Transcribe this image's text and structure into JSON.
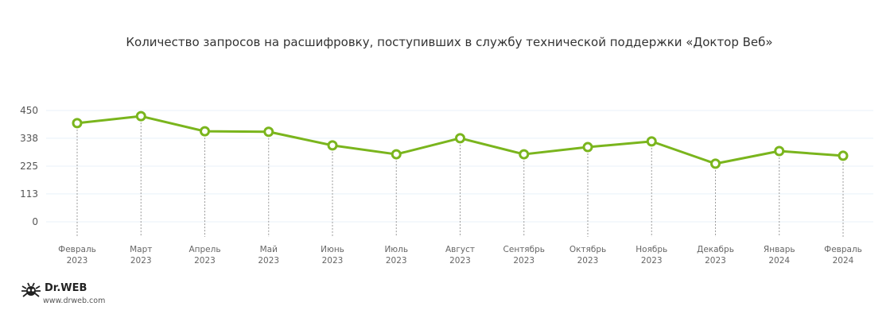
{
  "chart_data": {
    "type": "line",
    "title": "Количество запросов на расшифровку, поступивших в службу технической поддержки «Доктор Веб»",
    "categories": [
      [
        "Февраль",
        "2023"
      ],
      [
        "Март",
        "2023"
      ],
      [
        "Апрель",
        "2023"
      ],
      [
        "Май",
        "2023"
      ],
      [
        "Июнь",
        "2023"
      ],
      [
        "Июль",
        "2023"
      ],
      [
        "Август",
        "2023"
      ],
      [
        "Сентябрь",
        "2023"
      ],
      [
        "Октябрь",
        "2023"
      ],
      [
        "Ноябрь",
        "2023"
      ],
      [
        "Декабрь",
        "2023"
      ],
      [
        "Январь",
        "2024"
      ],
      [
        "Февраль",
        "2024"
      ]
    ],
    "values": [
      399,
      427,
      366,
      364,
      309,
      273,
      338,
      273,
      302,
      325,
      235,
      286,
      267
    ],
    "yticks": [
      "0",
      "113",
      "225",
      "338",
      "450"
    ],
    "ylim": [
      0,
      450
    ],
    "grid": true,
    "line_color": "#7ab51d"
  },
  "logo": {
    "brand": "Dr.WEB",
    "url": "www.drweb.com"
  }
}
